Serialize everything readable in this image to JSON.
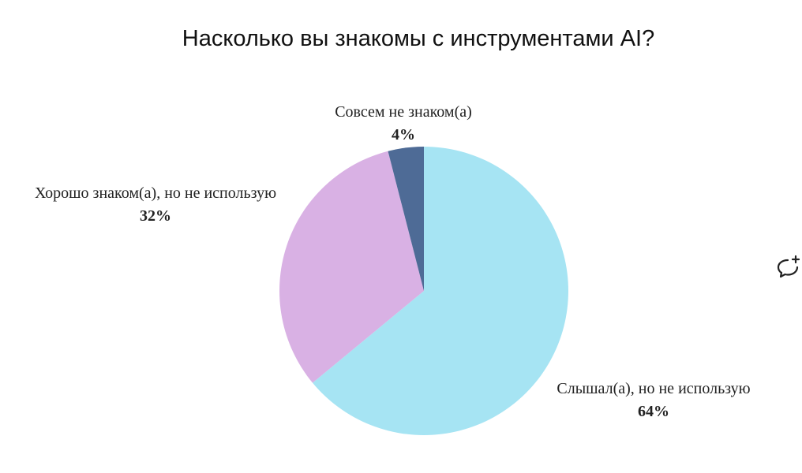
{
  "chart_data": {
    "type": "pie",
    "title": "Насколько вы знакомы с инструментами AI?",
    "slices": [
      {
        "label": "Слышал(а), но не использую",
        "value": 64,
        "value_label": "64%",
        "color": "#a6e4f3"
      },
      {
        "label": "Хорошо знаком(а), но не использую",
        "value": 32,
        "value_label": "32%",
        "color": "#d9b1e4"
      },
      {
        "label": "Совсем не знаком(а)",
        "value": 4,
        "value_label": "4%",
        "color": "#4e6b96"
      }
    ],
    "start": "12 o'clock",
    "direction": "clockwise",
    "legend": "none"
  },
  "toolbar": {
    "add_comment_icon": "add-comment-icon"
  }
}
